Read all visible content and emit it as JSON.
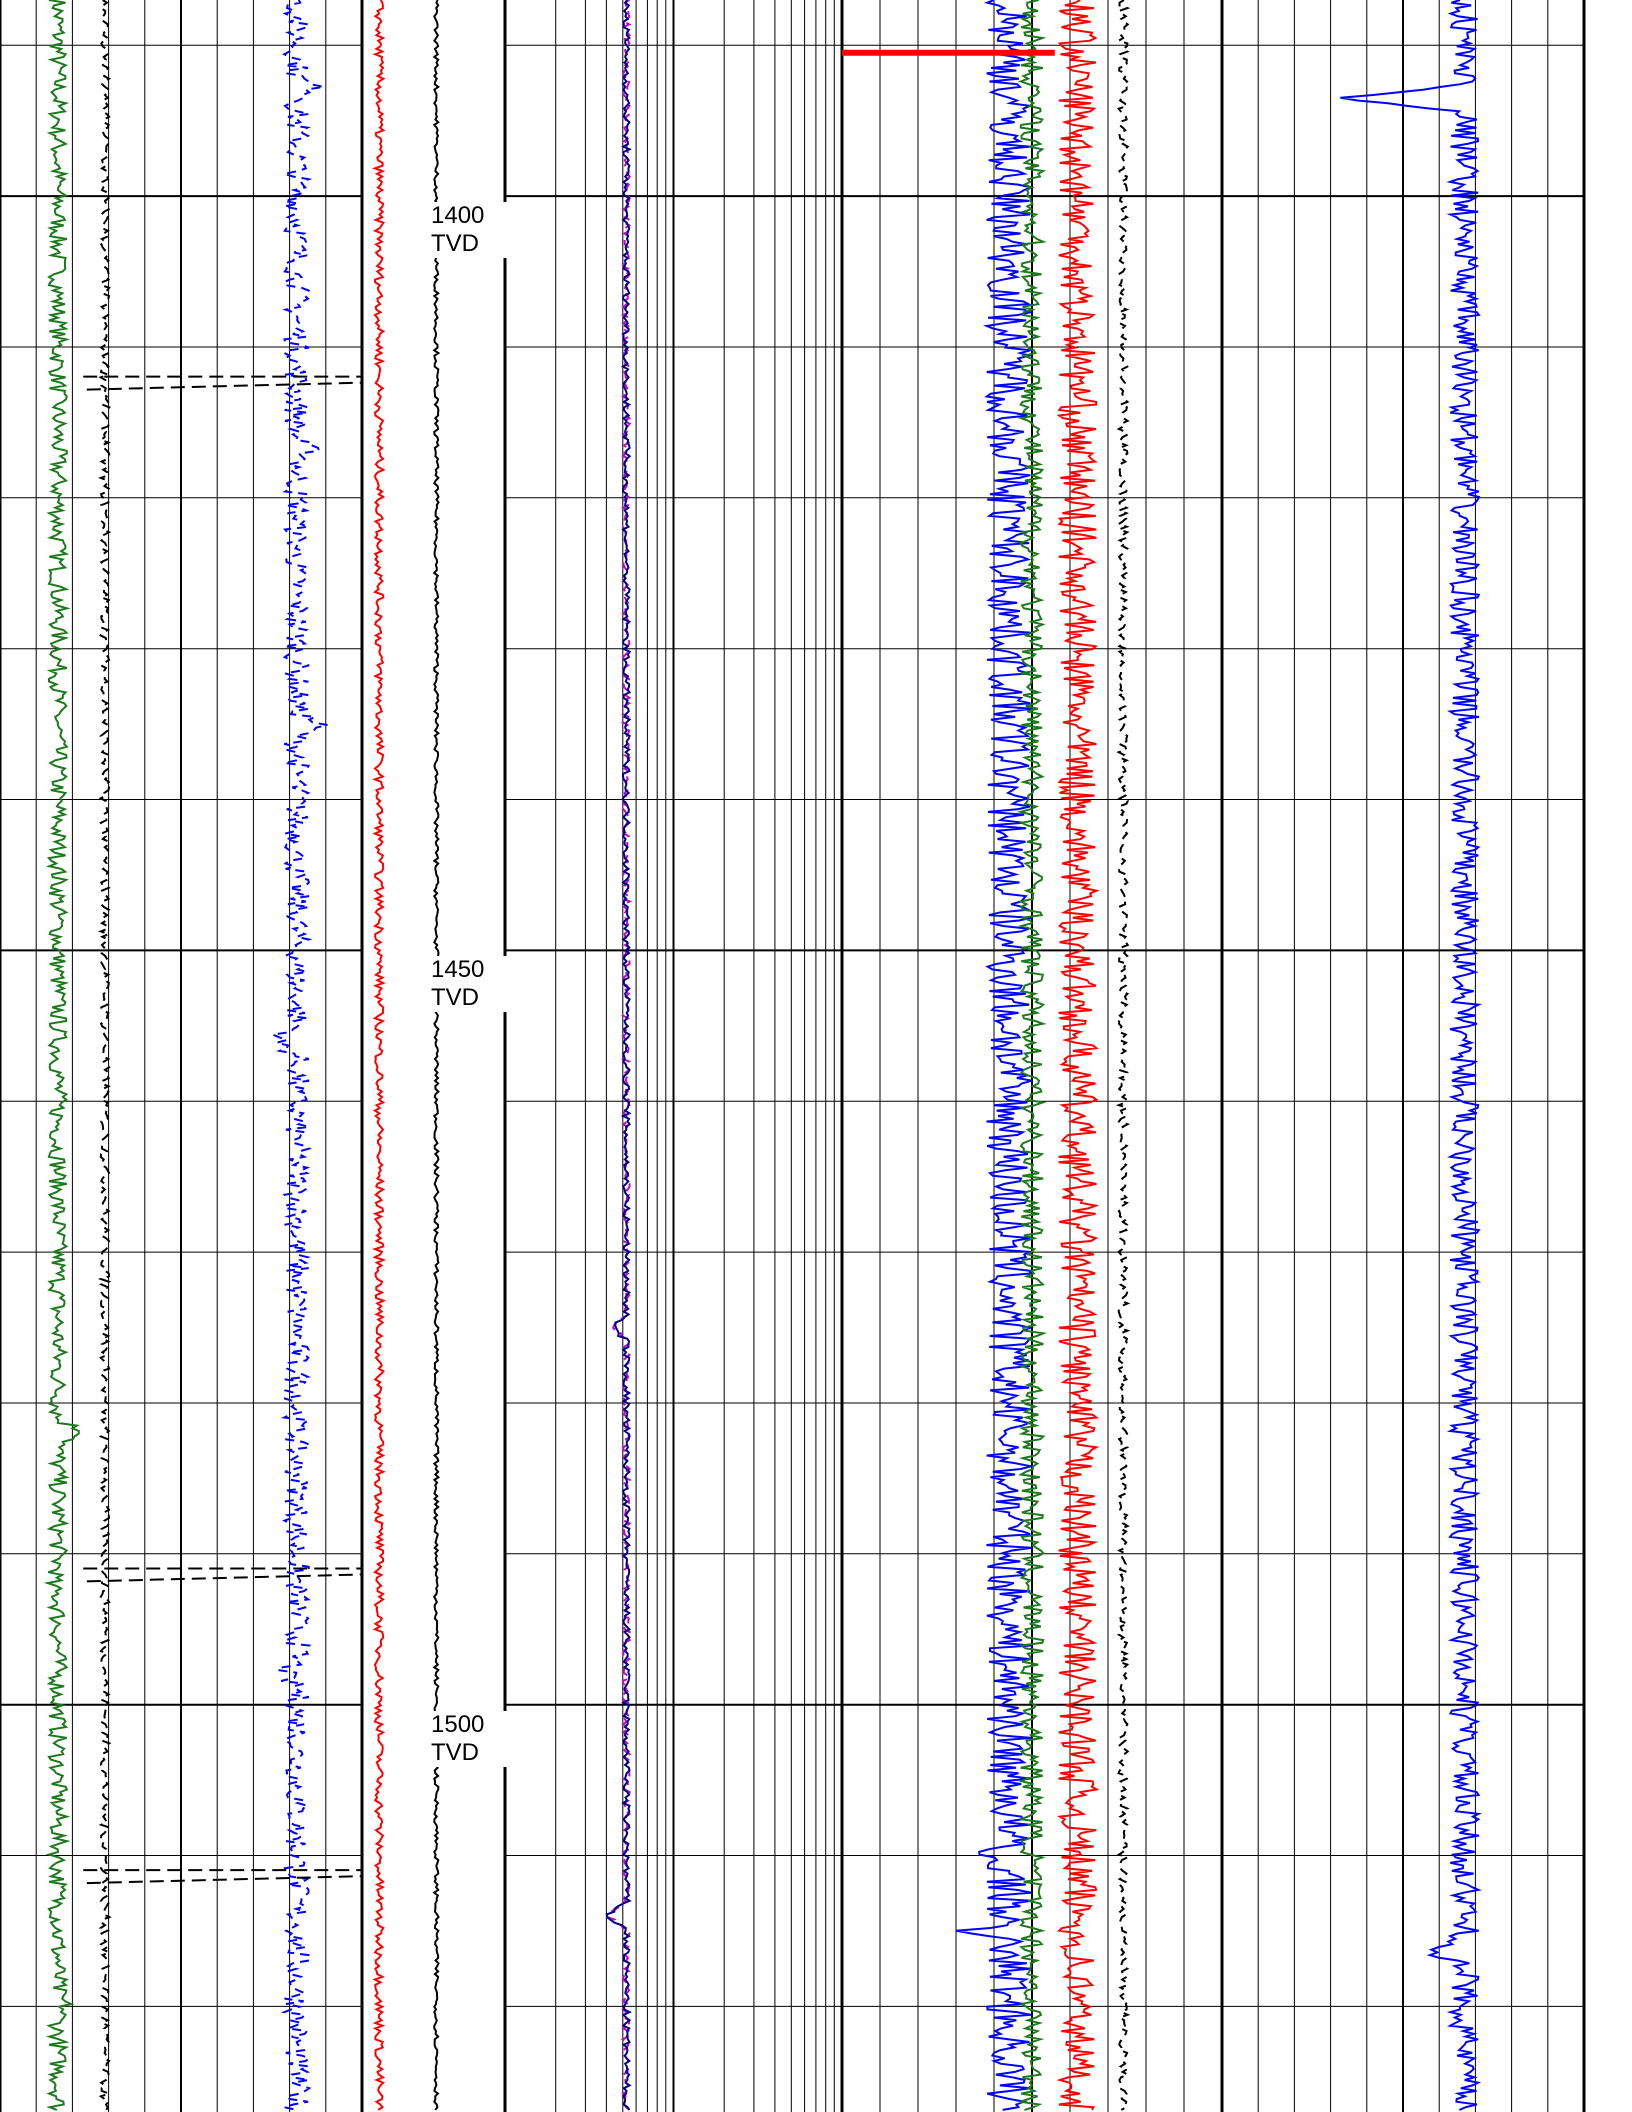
{
  "chart_data": {
    "type": "line",
    "title": "",
    "depth_axis": {
      "unit": "TVD",
      "top": 1387,
      "bottom": 1527,
      "major_step": 50,
      "minor_step": 10,
      "labels": [
        {
          "value": "1400",
          "unit": "TVD",
          "depth": 1400
        },
        {
          "value": "1450",
          "unit": "TVD",
          "depth": 1450
        },
        {
          "value": "1500",
          "unit": "TVD",
          "depth": 1500
        }
      ]
    },
    "tracks": [
      {
        "name": "track-1",
        "scale": "linear",
        "series": [
          {
            "color": "#1b7a1b",
            "style": "solid",
            "baseline": 0.16,
            "noise": 0.025,
            "events": [
              {
                "depth": 1482,
                "offset": 0.08
              },
              {
                "depth": 1492,
                "offset": -0.02
              },
              {
                "depth": 1520,
                "offset": 0.02
              }
            ]
          },
          {
            "color": "#0000ff",
            "style": "dashed",
            "baseline": 0.82,
            "noise": 0.035,
            "events": [
              {
                "depth": 1393,
                "offset": 0.06
              },
              {
                "depth": 1417,
                "offset": 0.04
              },
              {
                "depth": 1435,
                "offset": 0.06
              },
              {
                "depth": 1456,
                "offset": -0.06
              },
              {
                "depth": 1498,
                "offset": -0.04
              }
            ]
          },
          {
            "color": "#000000",
            "style": "dashed",
            "baseline": 0.29,
            "noise": 0.012,
            "events": []
          }
        ],
        "step_markers": [
          {
            "depth": 1412.5,
            "color": "#000000",
            "style": "dashed"
          },
          {
            "depth": 1491.5,
            "color": "#000000",
            "style": "dashed"
          },
          {
            "depth": 1511.5,
            "color": "#000000",
            "style": "dashed"
          }
        ]
      },
      {
        "name": "track-2",
        "scale": "linear",
        "series": [
          {
            "color": "#ff0000",
            "style": "solid",
            "baseline": 0.12,
            "noise": 0.03,
            "events": []
          },
          {
            "color": "#000000",
            "style": "solid",
            "baseline": 0.52,
            "noise": 0.015,
            "events": []
          }
        ]
      },
      {
        "name": "track-3",
        "scale": "logarithmic",
        "decades": 2,
        "series": [
          {
            "color": "#cc00cc",
            "style": "dashed",
            "baseline": 0.36,
            "noise": 0.01,
            "events": [
              {
                "depth": 1475,
                "offset": -0.04
              },
              {
                "depth": 1514,
                "offset": -0.06
              }
            ]
          },
          {
            "color": "#00008b",
            "style": "solid",
            "baseline": 0.36,
            "noise": 0.01,
            "events": [
              {
                "depth": 1475,
                "offset": -0.04
              },
              {
                "depth": 1514,
                "offset": -0.06
              }
            ]
          }
        ]
      },
      {
        "name": "track-4",
        "scale": "linear",
        "series": [
          {
            "color": "#0000ff",
            "style": "solid",
            "baseline": 0.44,
            "noise": 0.06,
            "events": [
              {
                "depth": 1510,
                "offset": -0.08
              },
              {
                "depth": 1515,
                "offset": -0.1
              }
            ]
          },
          {
            "color": "#1b7a1b",
            "style": "solid",
            "baseline": 0.5,
            "noise": 0.03,
            "events": []
          },
          {
            "color": "#ff0000",
            "style": "solid",
            "baseline": 0.62,
            "noise": 0.05,
            "events": []
          },
          {
            "color": "#000000",
            "style": "dashed",
            "baseline": 0.74,
            "noise": 0.012,
            "events": []
          }
        ],
        "flag": {
          "depth": 1390.5,
          "color": "#ff0000",
          "from": 0.0,
          "to": 0.56
        }
      },
      {
        "name": "track-5",
        "scale": "linear",
        "series": [
          {
            "color": "#0000ff",
            "style": "solid",
            "baseline": 0.67,
            "noise": 0.04,
            "events": [
              {
                "depth": 1393.5,
                "offset": -0.32
              },
              {
                "depth": 1516.5,
                "offset": -0.09
              }
            ]
          }
        ]
      }
    ]
  }
}
